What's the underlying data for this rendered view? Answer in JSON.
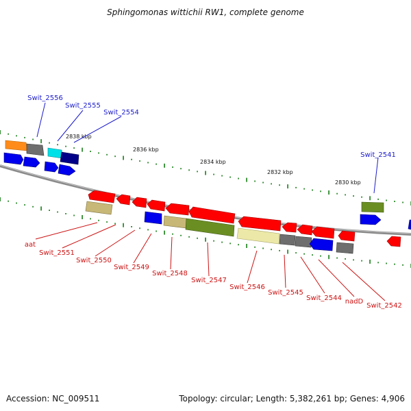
{
  "title": "Sphingomonas wittichii RW1, complete genome",
  "footer": {
    "accession": "Accession: NC_009511",
    "summary": "Topology: circular; Length: 5,382,261 bp; Genes: 4,906"
  },
  "scale_labels": [
    "2838 kbp",
    "2836 kbp",
    "2834 kbp",
    "2832 kbp",
    "2830 kbp"
  ],
  "colors": {
    "forward_label": "#1a1acc",
    "reverse_label": "#cc1111",
    "backbone": "#7a7a7a",
    "red_gene": "#ff0000",
    "blue_gene": "#0000ee",
    "navy_gene": "#000088",
    "cyan_gene": "#00e0e8",
    "orange_gene": "#ff8c1a",
    "gray_gene": "#6e6e6e",
    "olive_gene": "#6b8e23",
    "tan_gene": "#c8b878",
    "khaki_gene": "#ece9a8",
    "tick": "#2e8b2e"
  },
  "forward_labels": [
    "Swit_2556",
    "Swit_2555",
    "Swit_2554",
    "Swit_2541"
  ],
  "reverse_labels": [
    "aat",
    "Swit_2551",
    "Swit_2550",
    "Swit_2549",
    "Swit_2548",
    "Swit_2547",
    "Swit_2546",
    "Swit_2545",
    "Swit_2544",
    "nadD",
    "Swit_2542"
  ]
}
